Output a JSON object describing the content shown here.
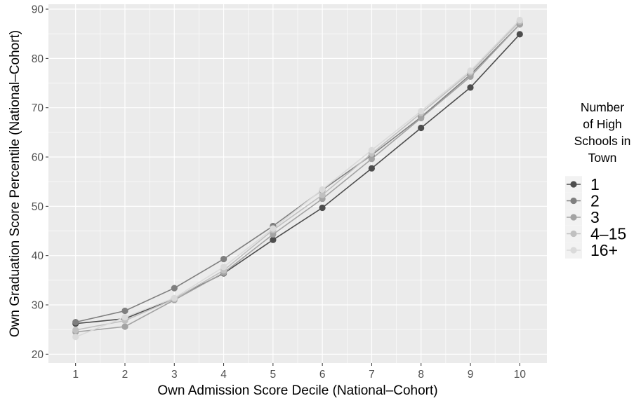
{
  "chart_data": {
    "type": "line",
    "xlabel": "Own Admission Score Decile (National–Cohort)",
    "ylabel": "Own Graduation Score Percentile (National–Cohort)",
    "x": [
      1,
      2,
      3,
      4,
      5,
      6,
      7,
      8,
      9,
      10
    ],
    "x_ticks": [
      "1",
      "2",
      "3",
      "4",
      "5",
      "6",
      "7",
      "8",
      "9",
      "10"
    ],
    "y_ticks": [
      "20",
      "30",
      "40",
      "50",
      "60",
      "70",
      "80",
      "90"
    ],
    "xlim": [
      0.45,
      10.55
    ],
    "ylim": [
      18.2,
      91.0
    ],
    "grid": true,
    "legend": {
      "title_lines": [
        "Number",
        "of High",
        "Schools in",
        "Town"
      ],
      "position": "right"
    },
    "series": [
      {
        "name": "1",
        "color": "#4d4d4d",
        "values": [
          26.2,
          27.2,
          31.3,
          36.4,
          43.2,
          49.7,
          57.7,
          65.9,
          74.1,
          84.9
        ]
      },
      {
        "name": "2",
        "color": "#7f7f7f",
        "values": [
          26.5,
          28.8,
          33.4,
          39.3,
          46.0,
          53.3,
          60.4,
          68.1,
          76.7,
          86.9
        ]
      },
      {
        "name": "3",
        "color": "#a3a3a3",
        "values": [
          24.5,
          25.6,
          31.0,
          36.5,
          44.3,
          51.5,
          59.6,
          67.9,
          76.3,
          86.9
        ]
      },
      {
        "name": "4–15",
        "color": "#c0c0c0",
        "values": [
          24.9,
          26.8,
          31.2,
          37.0,
          45.2,
          52.3,
          60.7,
          68.9,
          77.2,
          87.5
        ]
      },
      {
        "name": "16+",
        "color": "#dadada",
        "values": [
          23.5,
          27.5,
          31.4,
          37.7,
          45.5,
          53.4,
          61.4,
          69.3,
          77.5,
          87.8
        ]
      }
    ]
  }
}
